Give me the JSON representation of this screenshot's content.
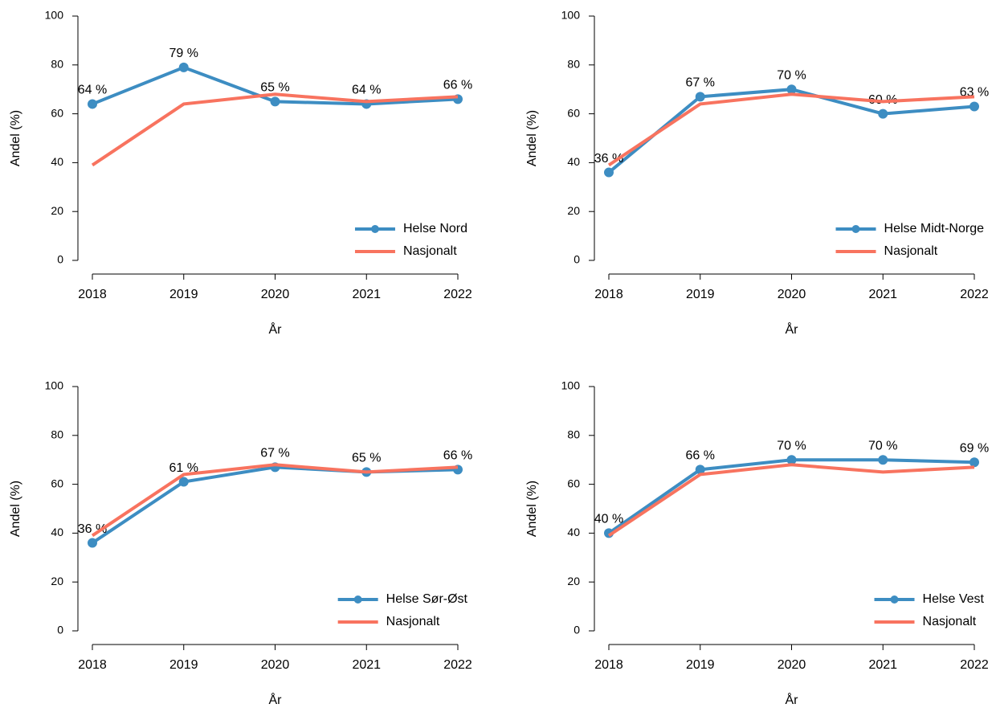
{
  "chart_data": [
    {
      "type": "line",
      "x": [
        "2018",
        "2019",
        "2020",
        "2021",
        "2022"
      ],
      "xlabel": "År",
      "ylabel": "Andel (%)",
      "ylim": [
        0,
        100
      ],
      "yticks": [
        0,
        20,
        40,
        60,
        80,
        100
      ],
      "grid": false,
      "legend": "bottom right",
      "series": [
        {
          "name": "Helse Nord",
          "color": "#3d8dc2",
          "marker": true,
          "values": [
            64,
            79,
            65,
            64,
            66
          ],
          "value_labels": [
            "64 %",
            "79 %",
            "65 %",
            "64 %",
            "66 %"
          ]
        },
        {
          "name": "Nasjonalt",
          "color": "#f8735f",
          "marker": false,
          "values": [
            39,
            64,
            68,
            65,
            67
          ]
        }
      ]
    },
    {
      "type": "line",
      "x": [
        "2018",
        "2019",
        "2020",
        "2021",
        "2022"
      ],
      "xlabel": "År",
      "ylabel": "Andel (%)",
      "ylim": [
        0,
        100
      ],
      "yticks": [
        0,
        20,
        40,
        60,
        80,
        100
      ],
      "grid": false,
      "legend": "bottom right",
      "series": [
        {
          "name": "Helse Midt-Norge",
          "color": "#3d8dc2",
          "marker": true,
          "values": [
            36,
            67,
            70,
            60,
            63
          ],
          "value_labels": [
            "36 %",
            "67 %",
            "70 %",
            "60 %",
            "63 %"
          ]
        },
        {
          "name": "Nasjonalt",
          "color": "#f8735f",
          "marker": false,
          "values": [
            39,
            64,
            68,
            65,
            67
          ]
        }
      ]
    },
    {
      "type": "line",
      "x": [
        "2018",
        "2019",
        "2020",
        "2021",
        "2022"
      ],
      "xlabel": "År",
      "ylabel": "Andel (%)",
      "ylim": [
        0,
        100
      ],
      "yticks": [
        0,
        20,
        40,
        60,
        80,
        100
      ],
      "grid": false,
      "legend": "bottom right",
      "series": [
        {
          "name": "Helse Sør-Øst",
          "color": "#3d8dc2",
          "marker": true,
          "values": [
            36,
            61,
            67,
            65,
            66
          ],
          "value_labels": [
            "36 %",
            "61 %",
            "67 %",
            "65 %",
            "66 %"
          ]
        },
        {
          "name": "Nasjonalt",
          "color": "#f8735f",
          "marker": false,
          "values": [
            39,
            64,
            68,
            65,
            67
          ]
        }
      ]
    },
    {
      "type": "line",
      "x": [
        "2018",
        "2019",
        "2020",
        "2021",
        "2022"
      ],
      "xlabel": "År",
      "ylabel": "Andel (%)",
      "ylim": [
        0,
        100
      ],
      "yticks": [
        0,
        20,
        40,
        60,
        80,
        100
      ],
      "grid": false,
      "legend": "bottom right",
      "series": [
        {
          "name": "Helse Vest",
          "color": "#3d8dc2",
          "marker": true,
          "values": [
            40,
            66,
            70,
            70,
            69
          ],
          "value_labels": [
            "40 %",
            "66 %",
            "70 %",
            "70 %",
            "69 %"
          ]
        },
        {
          "name": "Nasjonalt",
          "color": "#f8735f",
          "marker": false,
          "values": [
            39,
            64,
            68,
            65,
            67
          ]
        }
      ]
    }
  ]
}
